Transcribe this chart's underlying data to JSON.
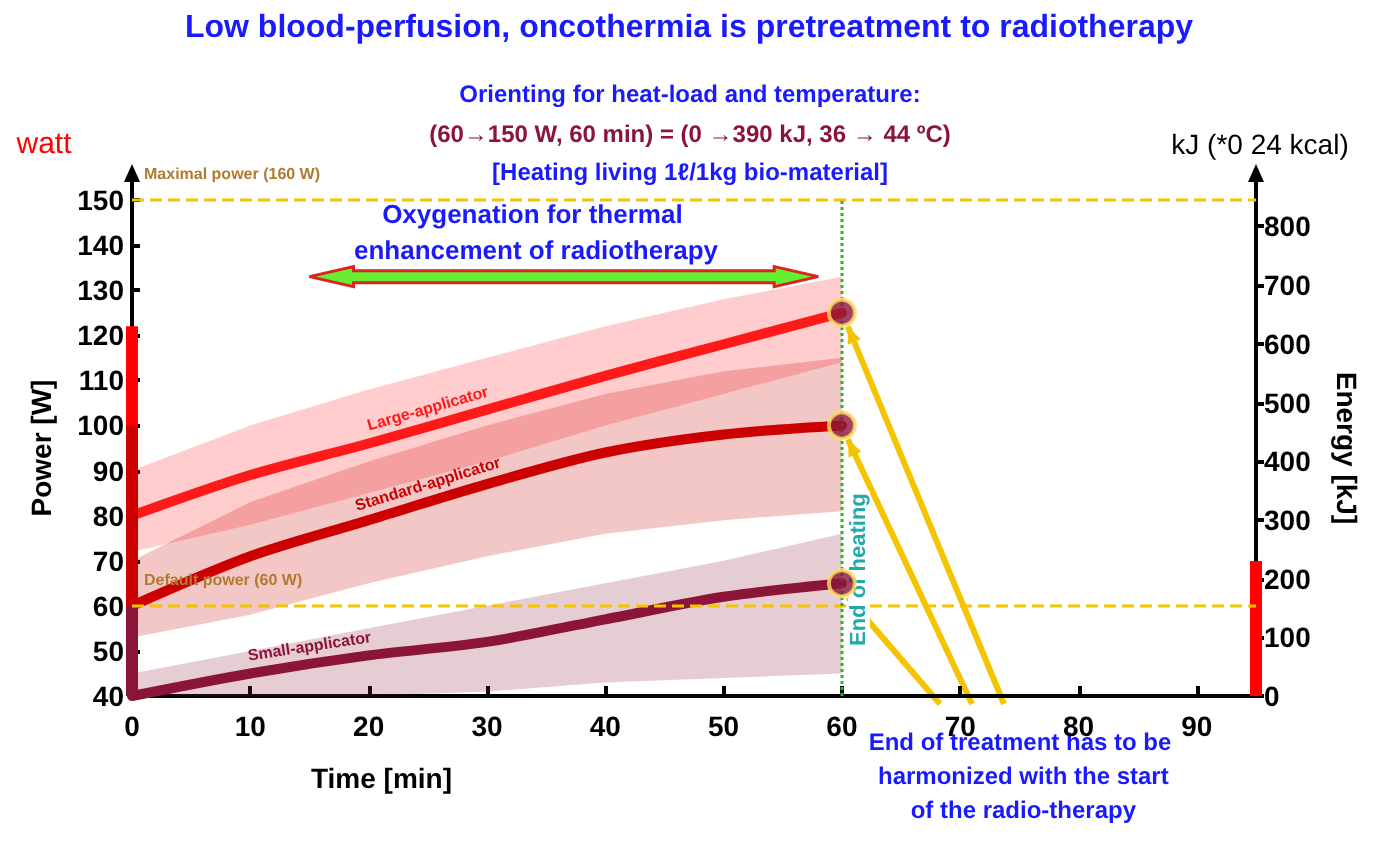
{
  "chart_data": {
    "type": "line",
    "title": "Low blood-perfusion, oncothermia is pretreatment to radiotherapy",
    "xlabel": "Time [min]",
    "ylabel": "Power [W]",
    "y2label": "Energy [kJ]",
    "annotations": [
      "Orienting for heat-load and temperature:",
      "(60→150 W, 60 min) = (0 →390 kJ, 36 → 44 ºC)",
      "[Heating living 1ℓ/1kg bio-material]",
      "watt",
      "kJ (*0 24 kcal)",
      "Oxygenation for thermal enhancement of radiotherapy",
      {
        "text": "End of treatment has to be harmonized with the start of the radio-therapy",
        "x": 60,
        "y": 100
      }
    ],
    "x": [
      0,
      10,
      20,
      30,
      40,
      50,
      60
    ],
    "series": [
      {
        "name": "Large-applicator",
        "color": "#ff1a1a",
        "values": [
          80,
          89,
          96,
          103.5,
          111,
          118,
          125
        ],
        "lower": [
          72,
          78,
          85,
          92,
          100,
          107,
          114
        ],
        "upper": [
          90,
          100,
          108,
          115,
          122,
          128,
          133
        ]
      },
      {
        "name": "Standard-applicator",
        "color": "#cc0000",
        "values": [
          60,
          71,
          79,
          87,
          94,
          98,
          100
        ],
        "lower": [
          53,
          58,
          65,
          71,
          76,
          79,
          81
        ],
        "upper": [
          70,
          83,
          92,
          100,
          107,
          112,
          115
        ]
      },
      {
        "name": "Small-applicator",
        "color": "#8b1538",
        "values": [
          40,
          45,
          49,
          52,
          57,
          62,
          65
        ],
        "lower": [
          40,
          40,
          40,
          41,
          43,
          44,
          45
        ],
        "upper": [
          45,
          50,
          55,
          60,
          65,
          70,
          76
        ]
      },
      {
        "type": "scatter",
        "color": "#8b1538",
        "x": [
          60,
          60,
          60
        ],
        "values": [
          125,
          100,
          65
        ],
        "marker": "circle"
      },
      {
        "type": "bar",
        "color": "#ff0000",
        "x": [
          0
        ],
        "base": [
          40
        ],
        "values": [
          82
        ]
      },
      {
        "type": "bar",
        "color": "#cc0000",
        "x": [
          0
        ],
        "base": [
          40
        ],
        "values": [
          60
        ]
      },
      {
        "type": "bar",
        "color": "#8b1538",
        "x": [
          0
        ],
        "base": [
          40
        ],
        "values": [
          20
        ]
      },
      {
        "type": "bar",
        "color": "#ff0000",
        "x": [
          95
        ],
        "base": [
          0
        ],
        "values": [
          230
        ],
        "axis": "y2"
      }
    ],
    "xlim": [
      0,
      95
    ],
    "xticks": [
      0,
      10,
      20,
      30,
      40,
      50,
      60,
      70,
      80,
      90
    ],
    "ylim": [
      40,
      150
    ],
    "yticks": [
      40,
      50,
      60,
      70,
      80,
      90,
      100,
      110,
      120,
      130,
      140,
      150
    ],
    "y2lim": [
      0,
      845
    ],
    "y2ticks": [
      0,
      100,
      200,
      300,
      400,
      500,
      600,
      700,
      800
    ],
    "ref_lines": [
      {
        "axis": "y",
        "value": 150,
        "label": "Maximal power (160 W)",
        "color": "#f5c400",
        "line_style": "dashed"
      },
      {
        "axis": "y",
        "value": 60,
        "label": "Default power (60 W)",
        "color": "#f5c400",
        "line_style": "dashed"
      },
      {
        "axis": "x",
        "value": 60,
        "label": "End of heating",
        "color": "#22bb22",
        "line_style": "dotted"
      }
    ],
    "grid": false,
    "legend": false,
    "marker": "none",
    "line_style": "solid"
  }
}
